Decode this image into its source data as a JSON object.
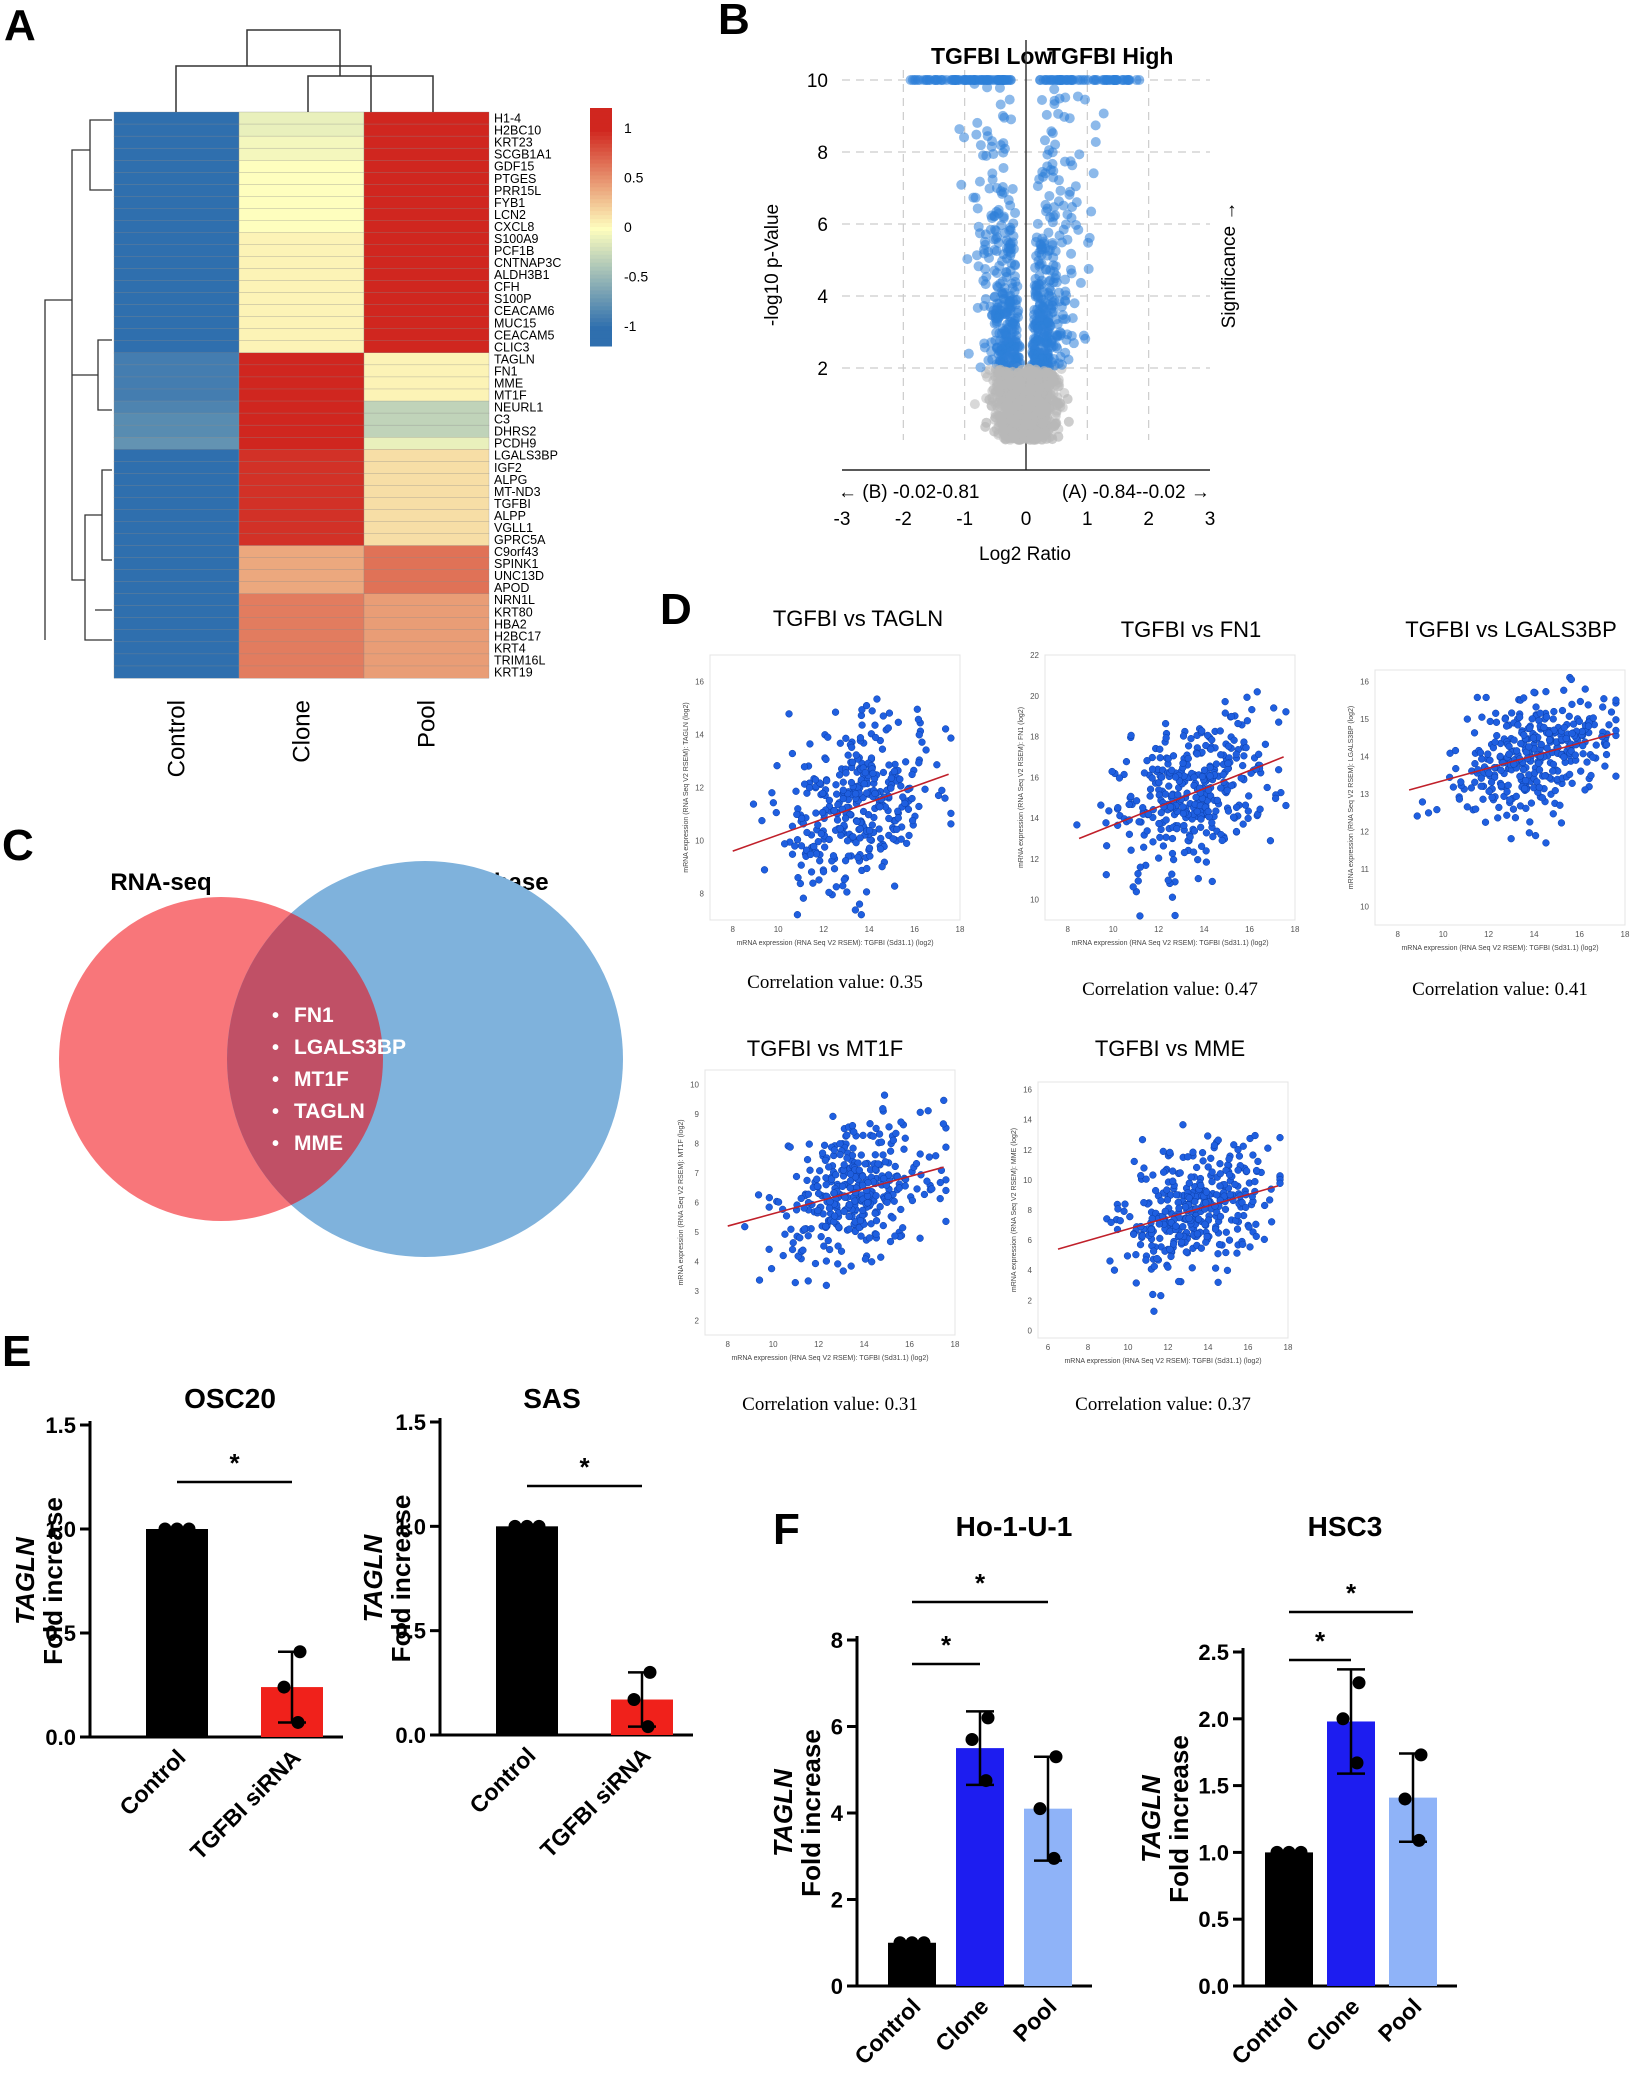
{
  "panels": {
    "A": "A",
    "B": "B",
    "C": "C",
    "D": "D",
    "E": "E",
    "F": "F"
  },
  "chart_data": [
    {
      "type": "heatmap",
      "panel": "A",
      "columns": [
        "Control",
        "Clone",
        "Pool"
      ],
      "rows": [
        "H1-4",
        "H2BC10",
        "KRT23",
        "SCGB1A1",
        "GDF15",
        "PTGES",
        "PRR15L",
        "FYB1",
        "LCN2",
        "CXCL8",
        "S100A9",
        "PCF1B",
        "CNTNAP3C",
        "ALDH3B1",
        "CFH",
        "S100P",
        "CEACAM6",
        "MUC15",
        "CEACAM5",
        "CLIC3",
        "TAGLN",
        "FN1",
        "MME",
        "MT1F",
        "NEURL1",
        "C3",
        "DHRS2",
        "PCDH9",
        "LGALS3BP",
        "IGF2",
        "ALPG",
        "MT-ND3",
        "TGFBI",
        "ALPP",
        "VGLL1",
        "GPRC5A",
        "C9orf43",
        "SPINK1",
        "UNC13D",
        "APOD",
        "NRN1L",
        "KRT80",
        "HBA2",
        "H2BC17",
        "KRT4",
        "TRIM16L",
        "KRT19"
      ],
      "values": [
        [
          -1,
          -0.1,
          1.15
        ],
        [
          -1,
          -0.1,
          1.15
        ],
        [
          -1,
          -0.05,
          1.1
        ],
        [
          -1,
          -0.05,
          1.1
        ],
        [
          -1,
          0,
          1.05
        ],
        [
          -1,
          0,
          1.05
        ],
        [
          -1,
          0,
          1.05
        ],
        [
          -1,
          0,
          1.05
        ],
        [
          -1,
          0,
          1.05
        ],
        [
          -1,
          0,
          1.05
        ],
        [
          -1,
          0.05,
          1.0
        ],
        [
          -1,
          0.05,
          1.0
        ],
        [
          -1,
          0.05,
          1.0
        ],
        [
          -1,
          0.05,
          1.0
        ],
        [
          -1,
          0.05,
          1.0
        ],
        [
          -1,
          0.05,
          1.0
        ],
        [
          -1,
          0.05,
          1.0
        ],
        [
          -1,
          0.05,
          1.0
        ],
        [
          -1,
          0.05,
          1.0
        ],
        [
          -1,
          0.05,
          1.0
        ],
        [
          -0.9,
          1.05,
          0.05
        ],
        [
          -0.9,
          1.05,
          0.05
        ],
        [
          -0.9,
          1.05,
          0.05
        ],
        [
          -0.9,
          1.05,
          0.05
        ],
        [
          -0.85,
          1.15,
          -0.3
        ],
        [
          -0.8,
          1.15,
          -0.3
        ],
        [
          -0.8,
          1.15,
          -0.3
        ],
        [
          -0.75,
          1.1,
          -0.1
        ],
        [
          -1,
          0.95,
          0.15
        ],
        [
          -1,
          0.95,
          0.15
        ],
        [
          -1,
          0.95,
          0.15
        ],
        [
          -1,
          0.95,
          0.15
        ],
        [
          -1,
          0.95,
          0.15
        ],
        [
          -1,
          0.95,
          0.15
        ],
        [
          -1,
          0.95,
          0.15
        ],
        [
          -1,
          0.95,
          0.15
        ],
        [
          -1,
          0.4,
          0.65
        ],
        [
          -1,
          0.4,
          0.65
        ],
        [
          -1,
          0.4,
          0.65
        ],
        [
          -1,
          0.4,
          0.65
        ],
        [
          -1,
          0.6,
          0.45
        ],
        [
          -1,
          0.6,
          0.45
        ],
        [
          -1,
          0.6,
          0.45
        ],
        [
          -1,
          0.6,
          0.45
        ],
        [
          -1,
          0.6,
          0.45
        ],
        [
          -1,
          0.6,
          0.45
        ],
        [
          -1,
          0.6,
          0.45
        ]
      ],
      "colorbar_ticks": [
        "1",
        "0.5",
        "0",
        "-0.5",
        "-1"
      ]
    },
    {
      "type": "scatter",
      "panel": "B",
      "title_left": "TGFBI Low",
      "title_right": "TGFBI High",
      "xlabel": "Log2 Ratio",
      "ylabel": "-log10 p-Value",
      "right_label": "Significance →",
      "left_range_label": "← (B) -0.02-0.81",
      "right_range_label": "(A) -0.84--0.02 →",
      "xlim": [
        -3,
        3
      ],
      "ylim": [
        0,
        10
      ],
      "xticks": [
        "-3",
        "-2",
        "-1",
        "0",
        "1",
        "2",
        "3"
      ],
      "yticks": [
        "2",
        "4",
        "6",
        "8",
        "10"
      ],
      "significance_threshold": 2
    },
    {
      "type": "scatter",
      "panel": "D",
      "plots": [
        {
          "title": "TGFBI vs TAGLN",
          "correlation": "Correlation value: 0.35",
          "ylabel": "mRNA expression (RNA Seq V2 RSEM): TAGLN (log2)",
          "xlabel": "mRNA expression (RNA Seq V2 RSEM): TGFBI (Sd31.1) (log2)",
          "xticks": [
            "8",
            "10",
            "12",
            "14",
            "16",
            "18"
          ],
          "yticks": [
            "8",
            "10",
            "12",
            "14",
            "16"
          ],
          "xlim": [
            7,
            18
          ],
          "ylim": [
            7,
            17
          ],
          "fit": [
            [
              8,
              9.6
            ],
            [
              17.5,
              12.5
            ]
          ],
          "center": [
            13.5,
            11.5
          ],
          "spread": [
            2.0,
            1.6
          ]
        },
        {
          "title": "TGFBI vs FN1",
          "correlation": "Correlation value: 0.47",
          "ylabel": "mRNA expression (RNA Seq V2 RSEM): FN1 (log2)",
          "xlabel": "mRNA expression (RNA Seq V2 RSEM): TGFBI (Sd31.1) (log2)",
          "xticks": [
            "8",
            "10",
            "12",
            "14",
            "16",
            "18"
          ],
          "yticks": [
            "10",
            "12",
            "14",
            "16",
            "18",
            "20",
            "22"
          ],
          "xlim": [
            7,
            18
          ],
          "ylim": [
            9,
            22
          ],
          "fit": [
            [
              8.5,
              13.0
            ],
            [
              17.5,
              17.0
            ]
          ],
          "center": [
            13.5,
            15.5
          ],
          "spread": [
            2.0,
            2.0
          ]
        },
        {
          "title": "TGFBI vs LGALS3BP",
          "correlation": "Correlation value: 0.41",
          "ylabel": "mRNA expression (RNA Seq V2 RSEM): LGALS3BP (log2)",
          "xlabel": "mRNA expression (RNA Seq V2 RSEM): TGFBI (Sd31.1) (log2)",
          "xticks": [
            "8",
            "10",
            "12",
            "14",
            "16",
            "18"
          ],
          "yticks": [
            "10",
            "11",
            "12",
            "13",
            "14",
            "15",
            "16"
          ],
          "xlim": [
            7,
            18
          ],
          "ylim": [
            9.5,
            16.3
          ],
          "fit": [
            [
              8.5,
              13.1
            ],
            [
              17.5,
              14.6
            ]
          ],
          "center": [
            14,
            14
          ],
          "spread": [
            2.0,
            0.8
          ]
        },
        {
          "title": "TGFBI vs MT1F",
          "correlation": "Correlation value: 0.31",
          "ylabel": "mRNA expression (RNA Seq V2 RSEM): MT1F (log2)",
          "xlabel": "mRNA expression (RNA Seq V2 RSEM): TGFBI (Sd31.1) (log2)",
          "xticks": [
            "8",
            "10",
            "12",
            "14",
            "16",
            "18"
          ],
          "yticks": [
            "2",
            "3",
            "4",
            "5",
            "6",
            "7",
            "8",
            "9",
            "10"
          ],
          "xlim": [
            7,
            18
          ],
          "ylim": [
            1.5,
            10.5
          ],
          "fit": [
            [
              8,
              5.2
            ],
            [
              17.5,
              7.2
            ]
          ],
          "center": [
            13.5,
            6.5
          ],
          "spread": [
            2.0,
            1.2
          ]
        },
        {
          "title": "TGFBI vs MME",
          "correlation": "Correlation value: 0.37",
          "ylabel": "mRNA expression (RNA Seq V2 RSEM): MME (log2)",
          "xlabel": "mRNA expression (RNA Seq V2 RSEM): TGFBI (Sd31.1) (log2)",
          "xticks": [
            "6",
            "8",
            "10",
            "12",
            "14",
            "16",
            "18"
          ],
          "yticks": [
            "0",
            "2",
            "4",
            "6",
            "8",
            "10",
            "12",
            "14",
            "16"
          ],
          "xlim": [
            5.5,
            18
          ],
          "ylim": [
            -0.5,
            16.5
          ],
          "fit": [
            [
              6.5,
              5.4
            ],
            [
              17.5,
              9.6
            ]
          ],
          "center": [
            13.5,
            8.5
          ],
          "spread": [
            2.2,
            2.2
          ]
        }
      ]
    },
    {
      "type": "bar",
      "panel": "E",
      "ylabel_gene": "TAGLN",
      "ylabel": "Fold increase",
      "plots": [
        {
          "title": "OSC20",
          "categories": [
            "Control",
            "TGFBI siRNA"
          ],
          "values": [
            1.0,
            0.24
          ],
          "errors": [
            0,
            0.17
          ],
          "points": [
            [
              1,
              1,
              1
            ],
            [
              0.41,
              0.24,
              0.07
            ]
          ],
          "colors": [
            "#000000",
            "#f0211b"
          ],
          "ylim": [
            0,
            1.5
          ],
          "yticks": [
            "0.0",
            "0.5",
            "1.0",
            "1.5"
          ],
          "significance": "*"
        },
        {
          "title": "SAS",
          "categories": [
            "Control",
            "TGFBI siRNA"
          ],
          "values": [
            1.0,
            0.17
          ],
          "errors": [
            0,
            0.13
          ],
          "points": [
            [
              1,
              1,
              1
            ],
            [
              0.3,
              0.17,
              0.04
            ]
          ],
          "colors": [
            "#000000",
            "#f0211b"
          ],
          "ylim": [
            0,
            1.5
          ],
          "yticks": [
            "0.0",
            "0.5",
            "1.0",
            "1.5"
          ],
          "significance": "*"
        }
      ]
    },
    {
      "type": "bar",
      "panel": "F",
      "ylabel_gene": "TAGLN",
      "ylabel": "Fold increase",
      "plots": [
        {
          "title": "Ho-1-U-1",
          "categories": [
            "Control",
            "Clone",
            "Pool"
          ],
          "values": [
            1.0,
            5.5,
            4.1
          ],
          "errors": [
            0,
            0.85,
            1.2
          ],
          "points": [
            [
              1,
              1,
              1
            ],
            [
              6.2,
              5.7,
              4.75
            ],
            [
              5.3,
              4.1,
              2.95
            ]
          ],
          "colors": [
            "#000000",
            "#1d1df0",
            "#8fb3f8"
          ],
          "ylim": [
            0,
            8
          ],
          "yticks": [
            "0",
            "2",
            "4",
            "6",
            "8"
          ],
          "significance": [
            "*",
            "*"
          ]
        },
        {
          "title": "HSC3",
          "categories": [
            "Control",
            "Clone",
            "Pool"
          ],
          "values": [
            1.0,
            1.98,
            1.41
          ],
          "errors": [
            0,
            0.39,
            0.33
          ],
          "points": [
            [
              1,
              1,
              1
            ],
            [
              2.27,
              2.0,
              1.67
            ],
            [
              1.73,
              1.4,
              1.09
            ]
          ],
          "colors": [
            "#000000",
            "#1d1df0",
            "#8fb3f8"
          ],
          "ylim": [
            0,
            2.5
          ],
          "yticks": [
            "0.0",
            "0.5",
            "1.0",
            "1.5",
            "2.0",
            "2.5"
          ],
          "significance": [
            "*",
            "*"
          ]
        }
      ]
    }
  ],
  "venn": {
    "left_title": "RNA-seq",
    "right_title": "TCGA Data base",
    "genes": [
      "FN1",
      "LGALS3BP",
      "MT1F",
      "TAGLN",
      "MME"
    ],
    "colors": {
      "left": "#f8767a",
      "right": "#7fb2dc",
      "overlap": "#c05066"
    }
  },
  "colors": {
    "heat_low": "#2f6fae",
    "heat_mid": "#fefebe",
    "heat_high": "#d0261f",
    "volcano": "#2e7fd8",
    "volcano_ns": "#b8b8b8",
    "dot_blue": "#1f5fe0",
    "fit_line": "#c0202a"
  }
}
